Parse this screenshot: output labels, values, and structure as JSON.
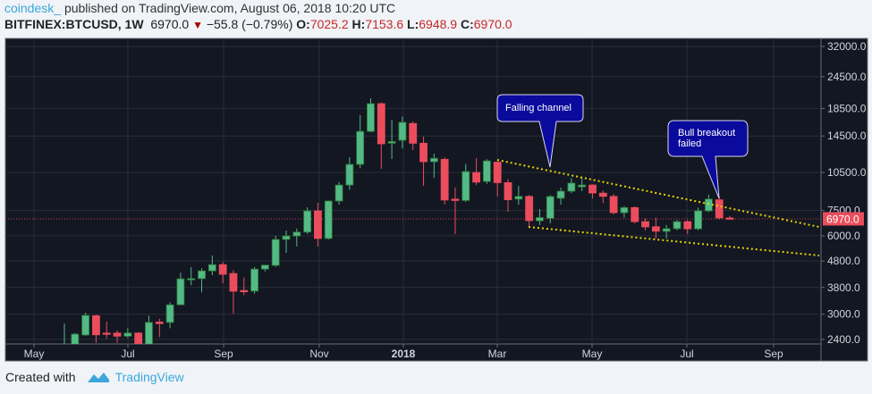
{
  "header": {
    "user": "coindesk_",
    "published": "published on TradingView.com, August 06, 2018 10:20 UTC",
    "symbol": "BITFINEX:BTCUSD, 1W",
    "last": "6970.0",
    "change": "−55.8 (−0.79%)",
    "o_label": "O:",
    "o": "7025.2",
    "h_label": "H:",
    "h": "7153.6",
    "l_label": "L:",
    "l": "6948.9",
    "c_label": "C:",
    "c": "6970.0",
    "down_icon": "triangle-down-icon"
  },
  "footer": {
    "created_with": "Created with",
    "brand": "TradingView",
    "logo_icon": "tradingview-cloud-logo"
  },
  "colors": {
    "up": "#53b987",
    "up_border": "#2e7d32",
    "down": "#eb4d5c",
    "background": "#131722",
    "grid": "#2a2e39",
    "trendline": "#e6d600",
    "callout": "#0a0a9c"
  },
  "chart_data": {
    "type": "candlestick",
    "title": "",
    "y_scale": "log",
    "ylim": [
      2300,
      33500
    ],
    "grid": true,
    "y_ticks": [
      32000,
      24500,
      18500,
      14500,
      10500,
      7500,
      6000,
      4800,
      3800,
      3000,
      2400
    ],
    "y_tick_labels": [
      "32000.0",
      "24500.0",
      "18500.0",
      "14500.0",
      "10500.0",
      "7500.0",
      "6000.0",
      "4800.0",
      "3800.0",
      "3000.0",
      "2400.0"
    ],
    "x_tick_labels": [
      "May",
      "Jul",
      "Sep",
      "Nov",
      "2018",
      "Mar",
      "May",
      "Jul",
      "Sep"
    ],
    "last_price": 6970.0,
    "last_price_label": "6970.0",
    "ohlc": [
      [
        2080,
        2760,
        1880,
        2190
      ],
      [
        2190,
        2540,
        2100,
        2516
      ],
      [
        2496,
        3040,
        2480,
        2968
      ],
      [
        2960,
        2990,
        2330,
        2500
      ],
      [
        2540,
        2810,
        2420,
        2520
      ],
      [
        2540,
        2600,
        2330,
        2470
      ],
      [
        2470,
        2650,
        2430,
        2540
      ],
      [
        2540,
        2560,
        1850,
        2300
      ],
      [
        2300,
        2960,
        2270,
        2790
      ],
      [
        2800,
        2880,
        2450,
        2760
      ],
      [
        2790,
        3330,
        2650,
        3260
      ],
      [
        3260,
        4330,
        3250,
        4100
      ],
      [
        4100,
        4550,
        3880,
        4110
      ],
      [
        4110,
        4500,
        3640,
        4400
      ],
      [
        4400,
        5040,
        4240,
        4650
      ],
      [
        4650,
        4750,
        3940,
        4270
      ],
      [
        4300,
        4420,
        3015,
        3675
      ],
      [
        3700,
        4150,
        3550,
        3680
      ],
      [
        3680,
        4550,
        3600,
        4470
      ],
      [
        4470,
        4640,
        4380,
        4630
      ],
      [
        4620,
        5995,
        4560,
        5810
      ],
      [
        5810,
        6290,
        5160,
        5990
      ],
      [
        5990,
        6400,
        5460,
        6200
      ],
      [
        6200,
        7720,
        6100,
        7480
      ],
      [
        7480,
        8030,
        5460,
        5860
      ],
      [
        5860,
        8200,
        5800,
        8160
      ],
      [
        8160,
        9650,
        7900,
        9400
      ],
      [
        9400,
        12020,
        9000,
        11280
      ],
      [
        11280,
        17420,
        10900,
        15100
      ],
      [
        15100,
        20240,
        15000,
        19300
      ],
      [
        19300,
        19500,
        10850,
        13530
      ],
      [
        13600,
        16740,
        11830,
        13800
      ],
      [
        13960,
        17200,
        13000,
        16360
      ],
      [
        16200,
        16500,
        12800,
        13600
      ],
      [
        13600,
        14400,
        9330,
        11550
      ],
      [
        11550,
        12400,
        10020,
        11900
      ],
      [
        11800,
        12000,
        7910,
        8230
      ],
      [
        8300,
        9190,
        6090,
        8200
      ],
      [
        8200,
        11330,
        8100,
        10590
      ],
      [
        10500,
        11920,
        9400,
        9640
      ],
      [
        9700,
        11800,
        9500,
        11640
      ],
      [
        11500,
        11600,
        8490,
        9600
      ],
      [
        9600,
        9900,
        7420,
        8250
      ],
      [
        8300,
        9330,
        7900,
        8500
      ],
      [
        8500,
        8600,
        6540,
        6860
      ],
      [
        6850,
        7600,
        6600,
        7050
      ],
      [
        7000,
        8600,
        6700,
        8490
      ],
      [
        8360,
        9180,
        7900,
        8900
      ],
      [
        8900,
        9990,
        8750,
        9560
      ],
      [
        9250,
        10000,
        8900,
        9400
      ],
      [
        9400,
        9450,
        8350,
        8760
      ],
      [
        8750,
        8950,
        8000,
        8500
      ],
      [
        8500,
        8700,
        7250,
        7360
      ],
      [
        7360,
        7800,
        7050,
        7700
      ],
      [
        7700,
        7780,
        6700,
        6800
      ],
      [
        6800,
        7000,
        6280,
        6490
      ],
      [
        6500,
        7050,
        5860,
        6250
      ],
      [
        6240,
        6600,
        5860,
        6390
      ],
      [
        6390,
        6900,
        6300,
        6800
      ],
      [
        6800,
        6900,
        6100,
        6380
      ],
      [
        6380,
        7700,
        6300,
        7480
      ],
      [
        7480,
        8630,
        7400,
        8300
      ],
      [
        8250,
        8480,
        6920,
        7025.2
      ],
      [
        7025.2,
        7153.6,
        6948.9,
        6970.0
      ]
    ],
    "annotations": [
      {
        "text": "Falling channel"
      },
      {
        "text": "Bull breakout failed"
      }
    ]
  }
}
